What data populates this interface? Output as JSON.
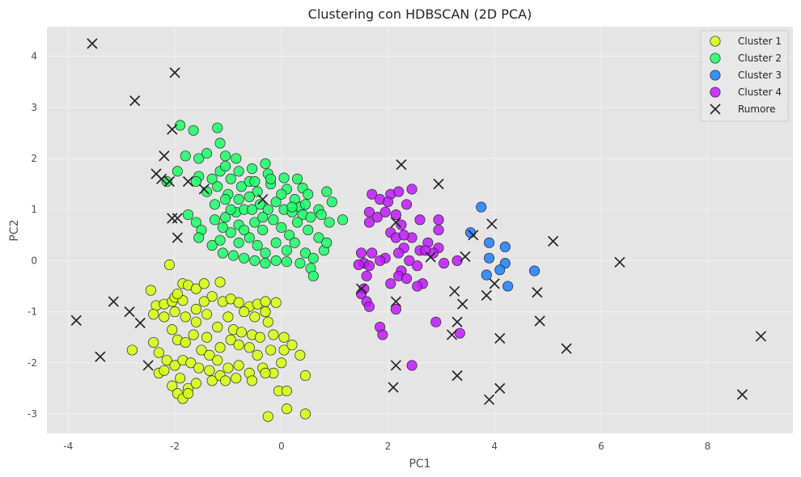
{
  "chart_data": {
    "type": "scatter",
    "title": "Clustering con HDBSCAN (2D PCA)",
    "xlabel": "PC1",
    "ylabel": "PC2",
    "xlim": [
      -4.4,
      9.6
    ],
    "ylim": [
      -3.38,
      4.58
    ],
    "xticks": [
      -4,
      -2,
      0,
      2,
      4,
      6,
      8
    ],
    "yticks": [
      -3,
      -2,
      -1,
      0,
      1,
      2,
      3,
      4
    ],
    "grid": true,
    "legend_position": "top-right",
    "series": [
      {
        "name": "Cluster 1",
        "color": "#d6ff0d",
        "marker": "circle",
        "points": [
          [
            -2.45,
            -0.58
          ],
          [
            -2.35,
            -0.88
          ],
          [
            -2.2,
            -0.85
          ],
          [
            -2.05,
            -0.8
          ],
          [
            -1.85,
            -0.45
          ],
          [
            -1.75,
            -0.48
          ],
          [
            -1.6,
            -0.55
          ],
          [
            -1.45,
            -0.45
          ],
          [
            -1.15,
            -0.42
          ],
          [
            -0.6,
            -0.9
          ],
          [
            -0.45,
            -0.85
          ],
          [
            -0.3,
            -0.8
          ],
          [
            -0.1,
            -0.82
          ],
          [
            -2.0,
            -0.72
          ],
          [
            -1.85,
            -0.78
          ],
          [
            -1.6,
            -0.95
          ],
          [
            -1.4,
            -1.05
          ],
          [
            -1.3,
            -0.7
          ],
          [
            -1.1,
            -0.8
          ],
          [
            -0.95,
            -0.75
          ],
          [
            -0.8,
            -0.82
          ],
          [
            -0.7,
            -1.0
          ],
          [
            -0.5,
            -1.1
          ],
          [
            -0.3,
            -1.0
          ],
          [
            -0.25,
            -1.2
          ],
          [
            -2.4,
            -1.05
          ],
          [
            -2.2,
            -1.1
          ],
          [
            -2.0,
            -1.0
          ],
          [
            -1.8,
            -1.1
          ],
          [
            -1.6,
            -1.2
          ],
          [
            -1.4,
            -1.5
          ],
          [
            -1.2,
            -1.3
          ],
          [
            -1.0,
            -1.1
          ],
          [
            -0.9,
            -1.35
          ],
          [
            -0.75,
            -1.4
          ],
          [
            -0.55,
            -1.45
          ],
          [
            -0.4,
            -1.5
          ],
          [
            -0.15,
            -1.45
          ],
          [
            0.05,
            -1.5
          ],
          [
            -2.05,
            -1.35
          ],
          [
            -1.95,
            -1.55
          ],
          [
            -1.8,
            -1.6
          ],
          [
            -1.65,
            -1.45
          ],
          [
            -1.5,
            -1.75
          ],
          [
            -1.35,
            -1.85
          ],
          [
            -1.15,
            -1.7
          ],
          [
            -0.95,
            -1.55
          ],
          [
            -0.8,
            -1.65
          ],
          [
            -0.6,
            -1.7
          ],
          [
            -0.45,
            -1.85
          ],
          [
            -0.2,
            -1.75
          ],
          [
            0.05,
            -1.75
          ],
          [
            0.2,
            -1.65
          ],
          [
            -2.4,
            -1.6
          ],
          [
            -2.3,
            -1.8
          ],
          [
            -2.15,
            -1.95
          ],
          [
            -2.0,
            -2.05
          ],
          [
            -1.85,
            -1.95
          ],
          [
            -1.7,
            -2.0
          ],
          [
            -1.55,
            -2.1
          ],
          [
            -1.35,
            -2.15
          ],
          [
            -1.2,
            -1.95
          ],
          [
            -1.0,
            -2.1
          ],
          [
            -0.8,
            -2.05
          ],
          [
            -0.6,
            -2.2
          ],
          [
            -0.35,
            -2.1
          ],
          [
            -0.15,
            -2.2
          ],
          [
            0.0,
            -2.0
          ],
          [
            -2.3,
            -2.2
          ],
          [
            -2.2,
            -2.15
          ],
          [
            -2.05,
            -2.45
          ],
          [
            -1.9,
            -2.3
          ],
          [
            -1.75,
            -2.5
          ],
          [
            -1.6,
            -2.4
          ],
          [
            -1.3,
            -2.35
          ],
          [
            -1.15,
            -2.25
          ],
          [
            -1.05,
            -2.35
          ],
          [
            -0.85,
            -2.3
          ],
          [
            -0.55,
            -2.35
          ],
          [
            -0.3,
            -2.2
          ],
          [
            0.45,
            -2.25
          ],
          [
            0.35,
            -1.85
          ],
          [
            -1.95,
            -2.6
          ],
          [
            -1.85,
            -2.7
          ],
          [
            -1.75,
            -2.6
          ],
          [
            -0.05,
            -2.55
          ],
          [
            0.1,
            -2.9
          ],
          [
            0.45,
            -3.0
          ],
          [
            -0.25,
            -3.05
          ],
          [
            0.1,
            -2.55
          ],
          [
            -2.8,
            -1.75
          ],
          [
            -1.95,
            -0.65
          ],
          [
            -2.1,
            -0.08
          ],
          [
            -0.3,
            -1.0
          ],
          [
            -1.45,
            -0.8
          ]
        ]
      },
      {
        "name": "Cluster 2",
        "color": "#1aff66",
        "marker": "circle",
        "points": [
          [
            -1.9,
            2.65
          ],
          [
            -1.65,
            2.55
          ],
          [
            -1.2,
            2.6
          ],
          [
            -1.15,
            2.3
          ],
          [
            -1.55,
            2.0
          ],
          [
            -1.4,
            2.1
          ],
          [
            -1.05,
            2.05
          ],
          [
            -0.85,
            2.0
          ],
          [
            -0.3,
            1.9
          ],
          [
            -0.8,
            1.75
          ],
          [
            -0.55,
            1.8
          ],
          [
            -0.25,
            1.7
          ],
          [
            0.05,
            1.62
          ],
          [
            0.4,
            1.42
          ],
          [
            0.5,
            1.3
          ],
          [
            -1.8,
            2.05
          ],
          [
            -1.55,
            1.65
          ],
          [
            -1.3,
            1.6
          ],
          [
            -1.15,
            1.75
          ],
          [
            -1.05,
            1.85
          ],
          [
            -0.95,
            1.6
          ],
          [
            -0.75,
            1.45
          ],
          [
            -0.6,
            1.55
          ],
          [
            -0.45,
            1.35
          ],
          [
            -0.2,
            1.5
          ],
          [
            0.1,
            1.4
          ],
          [
            0.25,
            1.2
          ],
          [
            0.35,
            1.05
          ],
          [
            0.7,
            1.0
          ],
          [
            0.85,
            1.35
          ],
          [
            0.95,
            1.15
          ],
          [
            -1.6,
            1.55
          ],
          [
            -1.4,
            1.35
          ],
          [
            -1.2,
            1.45
          ],
          [
            -1.0,
            1.3
          ],
          [
            -0.8,
            1.2
          ],
          [
            -0.6,
            1.25
          ],
          [
            -0.4,
            1.1
          ],
          [
            -0.25,
            1.0
          ],
          [
            -0.1,
            1.15
          ],
          [
            0.05,
            1.0
          ],
          [
            0.2,
            0.95
          ],
          [
            0.4,
            0.9
          ],
          [
            0.55,
            0.85
          ],
          [
            0.75,
            0.9
          ],
          [
            0.9,
            0.75
          ],
          [
            1.15,
            0.8
          ],
          [
            -1.75,
            0.9
          ],
          [
            -1.6,
            0.75
          ],
          [
            -1.5,
            0.6
          ],
          [
            -1.25,
            0.8
          ],
          [
            -1.05,
            0.85
          ],
          [
            -0.85,
            0.95
          ],
          [
            -0.7,
            1.0
          ],
          [
            -0.5,
            0.75
          ],
          [
            -0.35,
            0.6
          ],
          [
            -0.15,
            0.8
          ],
          [
            0.0,
            0.65
          ],
          [
            0.15,
            0.5
          ],
          [
            0.3,
            0.75
          ],
          [
            0.5,
            0.6
          ],
          [
            0.7,
            0.45
          ],
          [
            -1.55,
            0.45
          ],
          [
            -1.3,
            0.3
          ],
          [
            -1.15,
            0.4
          ],
          [
            -0.95,
            0.55
          ],
          [
            -0.8,
            0.35
          ],
          [
            -0.6,
            0.45
          ],
          [
            -0.45,
            0.3
          ],
          [
            -0.3,
            0.15
          ],
          [
            -0.1,
            0.35
          ],
          [
            0.1,
            0.2
          ],
          [
            0.25,
            0.35
          ],
          [
            0.45,
            0.15
          ],
          [
            0.6,
            0.05
          ],
          [
            0.8,
            0.2
          ],
          [
            0.85,
            0.35
          ],
          [
            -1.1,
            0.15
          ],
          [
            -0.9,
            0.1
          ],
          [
            -0.7,
            0.05
          ],
          [
            -0.5,
            0.0
          ],
          [
            -0.3,
            -0.05
          ],
          [
            -0.1,
            0.0
          ],
          [
            0.1,
            -0.02
          ],
          [
            0.35,
            -0.05
          ],
          [
            0.55,
            -0.15
          ],
          [
            0.6,
            -0.3
          ],
          [
            -0.8,
            0.7
          ],
          [
            -0.55,
            1.0
          ],
          [
            -0.2,
            1.6
          ],
          [
            0.3,
            1.6
          ],
          [
            -1.95,
            1.75
          ],
          [
            -2.15,
            1.55
          ],
          [
            -1.05,
            1.2
          ],
          [
            -0.95,
            1.0
          ],
          [
            -0.7,
            0.6
          ],
          [
            -0.35,
            0.85
          ],
          [
            0.0,
            1.3
          ],
          [
            0.2,
            1.05
          ],
          [
            0.45,
            1.1
          ],
          [
            -0.5,
            1.55
          ],
          [
            -1.25,
            1.1
          ],
          [
            -1.1,
            0.65
          ]
        ]
      },
      {
        "name": "Cluster 3",
        "color": "#1f7fff",
        "marker": "circle",
        "points": [
          [
            3.75,
            1.05
          ],
          [
            3.55,
            0.55
          ],
          [
            3.9,
            0.35
          ],
          [
            4.2,
            0.27
          ],
          [
            3.9,
            0.05
          ],
          [
            4.2,
            -0.05
          ],
          [
            4.1,
            -0.18
          ],
          [
            3.85,
            -0.28
          ],
          [
            4.25,
            -0.5
          ],
          [
            4.75,
            -0.2
          ]
        ]
      },
      {
        "name": "Cluster 4",
        "color": "#bf1aff",
        "marker": "circle",
        "points": [
          [
            1.7,
            1.3
          ],
          [
            1.85,
            1.2
          ],
          [
            2.05,
            1.3
          ],
          [
            2.2,
            1.35
          ],
          [
            2.45,
            1.4
          ],
          [
            2.0,
            1.15
          ],
          [
            2.35,
            1.1
          ],
          [
            2.15,
            0.9
          ],
          [
            1.95,
            0.95
          ],
          [
            1.65,
            0.95
          ],
          [
            1.8,
            0.85
          ],
          [
            2.25,
            0.7
          ],
          [
            2.6,
            0.8
          ],
          [
            2.95,
            0.8
          ],
          [
            2.95,
            0.6
          ],
          [
            1.65,
            0.75
          ],
          [
            2.05,
            0.55
          ],
          [
            2.15,
            0.45
          ],
          [
            2.45,
            0.45
          ],
          [
            2.75,
            0.35
          ],
          [
            2.95,
            0.25
          ],
          [
            2.85,
            0.15
          ],
          [
            2.6,
            0.2
          ],
          [
            2.3,
            0.25
          ],
          [
            2.2,
            0.15
          ],
          [
            1.95,
            0.05
          ],
          [
            1.7,
            0.15
          ],
          [
            1.5,
            0.15
          ],
          [
            1.85,
            0.0
          ],
          [
            1.55,
            -0.05
          ],
          [
            1.45,
            -0.08
          ],
          [
            1.65,
            -0.1
          ],
          [
            2.4,
            0.0
          ],
          [
            2.55,
            -0.1
          ],
          [
            2.25,
            -0.2
          ],
          [
            1.55,
            -0.55
          ],
          [
            1.5,
            -0.65
          ],
          [
            1.6,
            -0.8
          ],
          [
            1.65,
            -0.9
          ],
          [
            2.2,
            -0.3
          ],
          [
            2.35,
            -0.35
          ],
          [
            2.65,
            -0.45
          ],
          [
            2.55,
            -0.5
          ],
          [
            2.05,
            -0.45
          ],
          [
            2.15,
            -0.95
          ],
          [
            1.85,
            -1.3
          ],
          [
            1.9,
            -1.45
          ],
          [
            2.9,
            -1.2
          ],
          [
            3.35,
            -1.42
          ],
          [
            2.45,
            -2.05
          ],
          [
            3.05,
            -0.05
          ],
          [
            3.3,
            0.0
          ],
          [
            2.3,
            0.5
          ],
          [
            2.7,
            0.2
          ],
          [
            1.6,
            -0.3
          ]
        ]
      },
      {
        "name": "Rumore",
        "color": "#262626",
        "marker": "x",
        "points": [
          [
            -3.55,
            4.25
          ],
          [
            -2.0,
            3.68
          ],
          [
            -2.75,
            3.13
          ],
          [
            -2.05,
            2.57
          ],
          [
            -2.2,
            2.05
          ],
          [
            -2.35,
            1.7
          ],
          [
            -2.25,
            1.6
          ],
          [
            -2.1,
            1.55
          ],
          [
            -1.75,
            1.55
          ],
          [
            -1.45,
            1.4
          ],
          [
            -2.05,
            0.83
          ],
          [
            -1.95,
            0.83
          ],
          [
            -1.95,
            0.45
          ],
          [
            -0.35,
            1.2
          ],
          [
            -3.85,
            -1.17
          ],
          [
            -3.4,
            -1.88
          ],
          [
            -3.15,
            -0.8
          ],
          [
            -2.85,
            -1.0
          ],
          [
            -2.65,
            -1.22
          ],
          [
            -2.5,
            -2.05
          ],
          [
            2.25,
            1.88
          ],
          [
            2.95,
            1.5
          ],
          [
            1.5,
            -0.55
          ],
          [
            2.15,
            -0.8
          ],
          [
            2.15,
            -2.05
          ],
          [
            2.1,
            -2.48
          ],
          [
            3.25,
            -0.6
          ],
          [
            3.4,
            -0.85
          ],
          [
            3.3,
            -1.2
          ],
          [
            3.2,
            -1.45
          ],
          [
            3.45,
            0.08
          ],
          [
            3.3,
            -2.25
          ],
          [
            3.6,
            0.5
          ],
          [
            3.85,
            -0.68
          ],
          [
            3.95,
            0.72
          ],
          [
            4.0,
            -0.45
          ],
          [
            4.1,
            -1.52
          ],
          [
            4.1,
            -2.5
          ],
          [
            3.9,
            -2.72
          ],
          [
            4.8,
            -0.62
          ],
          [
            4.85,
            -1.18
          ],
          [
            5.1,
            0.38
          ],
          [
            5.35,
            -1.72
          ],
          [
            6.35,
            -0.03
          ],
          [
            8.65,
            -2.62
          ],
          [
            9.0,
            -1.48
          ],
          [
            2.8,
            0.07
          ],
          [
            2.15,
            0.75
          ]
        ]
      }
    ]
  }
}
